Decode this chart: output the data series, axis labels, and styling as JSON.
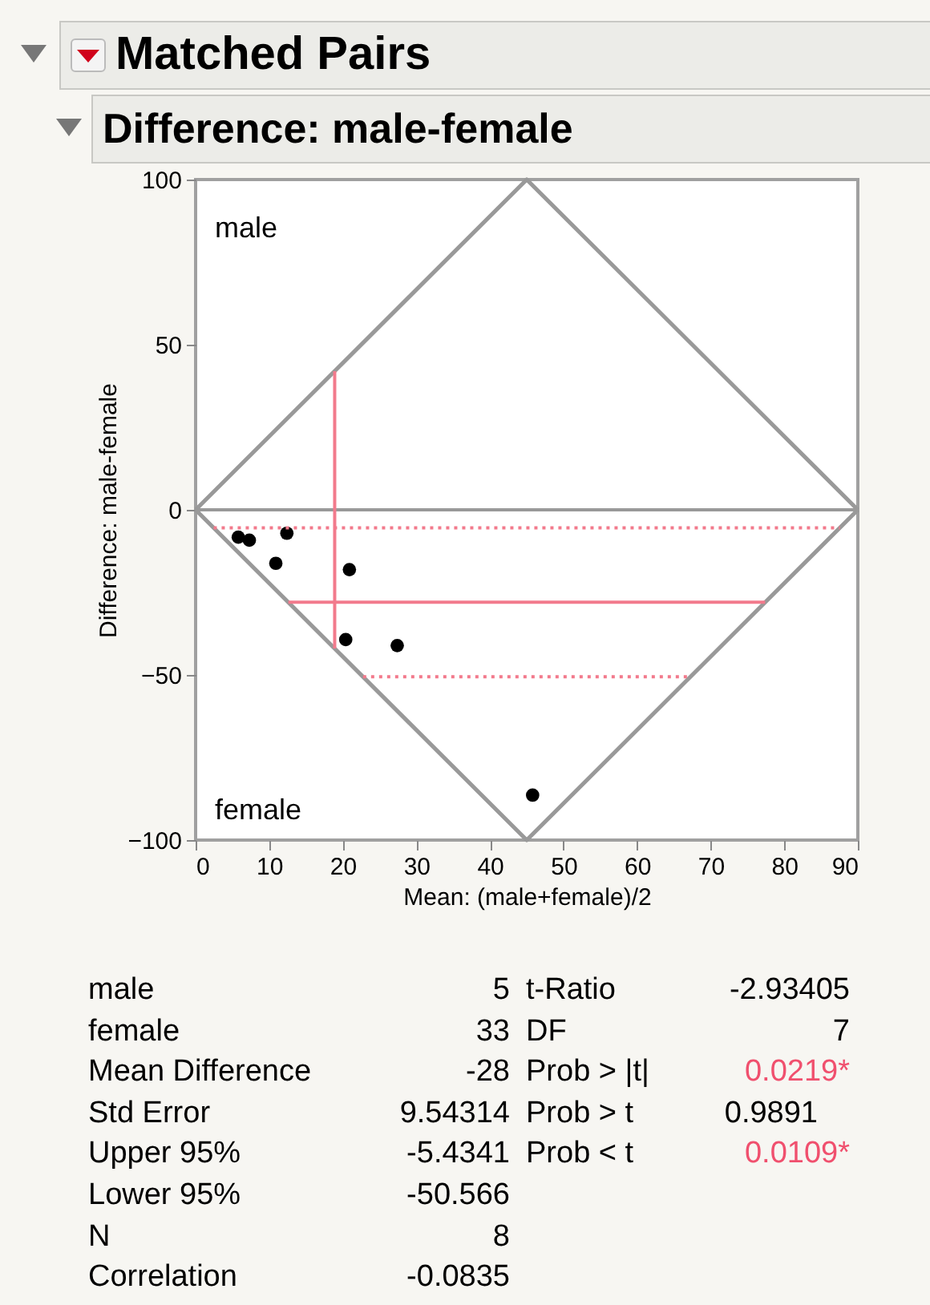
{
  "chart_data": {
    "type": "scatter",
    "title": "Matched Pairs",
    "subtitle": "Difference: male-female",
    "xlabel": "Mean: (male+female)/2",
    "ylabel": "Difference: male-female",
    "series": [
      {
        "type": "line",
        "color": "#999999",
        "marker": "none",
        "x": [
          0,
          45,
          90
        ],
        "values": [
          0,
          100,
          0
        ]
      },
      {
        "type": "line",
        "color": "#999999",
        "marker": "none",
        "x": [
          0,
          45,
          90
        ],
        "values": [
          0,
          -100,
          0
        ]
      },
      {
        "color": "#000000",
        "x": [
          5.8,
          7.3,
          12.4,
          10.9,
          20.9,
          20.4,
          27.4,
          45.8
        ],
        "values": [
          -8.3,
          -9.2,
          -7.1,
          -16.2,
          -18.1,
          -39.3,
          -41.1,
          -86.4
        ]
      }
    ],
    "marker": "circle",
    "xlim": [
      0,
      90
    ],
    "xticks": [
      0,
      10,
      20,
      30,
      40,
      50,
      60,
      70,
      80,
      90
    ],
    "ylim": [
      -100,
      100
    ],
    "yticks": [
      -100,
      -50,
      0,
      50,
      100
    ],
    "grid": false,
    "ref_lines": [
      {
        "axis": "y",
        "value": 0,
        "color": "#999999",
        "line_style": "solid"
      },
      {
        "axis": "y",
        "value": -28,
        "color": "#f27a8c",
        "line_style": "solid"
      },
      {
        "axis": "y",
        "value": -5.4341,
        "color": "#f27a8c",
        "line_style": "dotted"
      },
      {
        "axis": "y",
        "value": -50.566,
        "color": "#f27a8c",
        "line_style": "dotted"
      },
      {
        "axis": "x",
        "value": 18.9,
        "color": "#f27a8c",
        "line_style": "solid"
      }
    ],
    "annotations": [
      "male",
      "female",
      "male",
      "5",
      "female",
      "33",
      "Mean Difference",
      "-28",
      "Std Error",
      "9.54314",
      "Upper 95%",
      "-5.4341",
      "Lower 95%",
      "-50.566",
      "N",
      "8",
      "Correlation",
      "-0.0835",
      "t-Ratio",
      "-2.93405",
      "DF",
      "7",
      "Prob > |t|",
      "0.0219*",
      "Prob > t",
      "0.9891",
      "Prob < t",
      "0.0109*"
    ]
  }
}
